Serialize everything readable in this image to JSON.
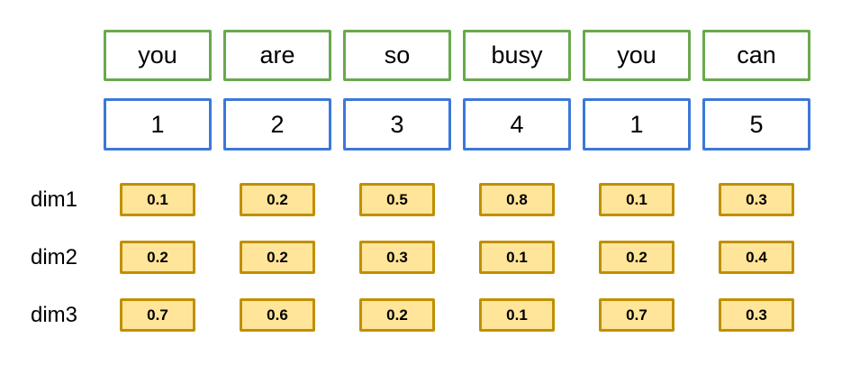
{
  "diagram": {
    "description": "word embedding diagram",
    "words": [
      "you",
      "are",
      "so",
      "busy",
      "you",
      "can"
    ],
    "token_ids": [
      "1",
      "2",
      "3",
      "4",
      "1",
      "5"
    ],
    "dims": [
      {
        "label": "dim1",
        "values": [
          "0.1",
          "0.2",
          "0.5",
          "0.8",
          "0.1",
          "0.3"
        ]
      },
      {
        "label": "dim2",
        "values": [
          "0.2",
          "0.2",
          "0.3",
          "0.1",
          "0.2",
          "0.4"
        ]
      },
      {
        "label": "dim3",
        "values": [
          "0.7",
          "0.6",
          "0.2",
          "0.1",
          "0.7",
          "0.3"
        ]
      }
    ],
    "colors": {
      "word_border": "#6aa84f",
      "id_border": "#3c78d8",
      "value_border": "#bf9000",
      "value_fill": "#ffe599"
    }
  }
}
